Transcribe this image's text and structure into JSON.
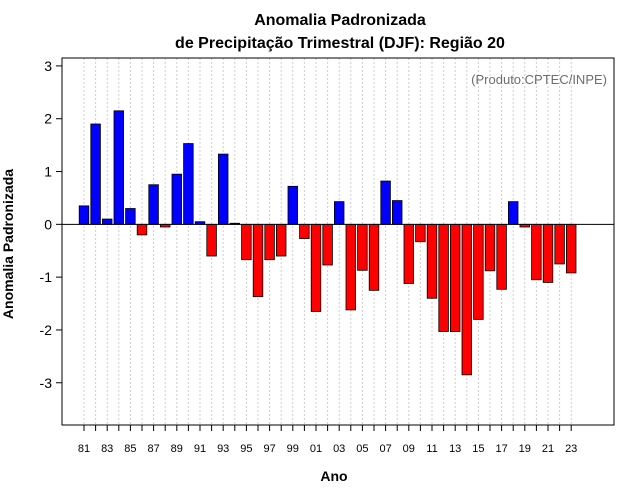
{
  "chart_data": {
    "type": "bar",
    "title": "Anomalia Padronizada",
    "subtitle": "de Precipitação Trimestral (DJF): Região 20",
    "xlabel": "Ano",
    "ylabel": "Anomalia Padronizada",
    "annotation": "(Produto:CPTEC/INPE)",
    "ylim": [
      -3.8,
      3.15
    ],
    "yticks": [
      -3,
      -2,
      -1,
      0,
      1,
      2,
      3
    ],
    "ytick_labels": [
      "-3",
      "-2",
      "-1",
      "0",
      "1",
      "2",
      "3"
    ],
    "grid": true,
    "categories": [
      "81",
      "82",
      "83",
      "84",
      "85",
      "86",
      "87",
      "88",
      "89",
      "90",
      "91",
      "92",
      "93",
      "94",
      "95",
      "96",
      "97",
      "98",
      "99",
      "00",
      "01",
      "02",
      "03",
      "04",
      "05",
      "06",
      "07",
      "08",
      "09",
      "10",
      "11",
      "12",
      "13",
      "14",
      "15",
      "16",
      "17",
      "18",
      "19",
      "20",
      "21",
      "22",
      "23"
    ],
    "xtick_labels": [
      "81",
      "83",
      "85",
      "87",
      "89",
      "91",
      "93",
      "95",
      "97",
      "99",
      "01",
      "03",
      "05",
      "07",
      "09",
      "11",
      "13",
      "15",
      "17",
      "19",
      "21",
      "23"
    ],
    "values": [
      0.35,
      1.9,
      0.1,
      2.15,
      0.3,
      -0.2,
      0.75,
      -0.05,
      0.95,
      1.53,
      0.05,
      -0.6,
      1.33,
      0.02,
      -0.67,
      -1.37,
      -0.67,
      -0.6,
      0.72,
      -0.27,
      -1.65,
      -0.77,
      0.43,
      -1.62,
      -0.87,
      -1.25,
      0.82,
      0.45,
      -1.12,
      -0.33,
      -1.4,
      -2.03,
      -2.03,
      -2.85,
      -1.8,
      -0.88,
      -1.23,
      0.43,
      -0.05,
      -1.05,
      -1.1,
      -0.75,
      -0.92
    ],
    "colors": {
      "positive": "#0000ff",
      "negative": "#ff0000",
      "outline": "#000000"
    }
  }
}
